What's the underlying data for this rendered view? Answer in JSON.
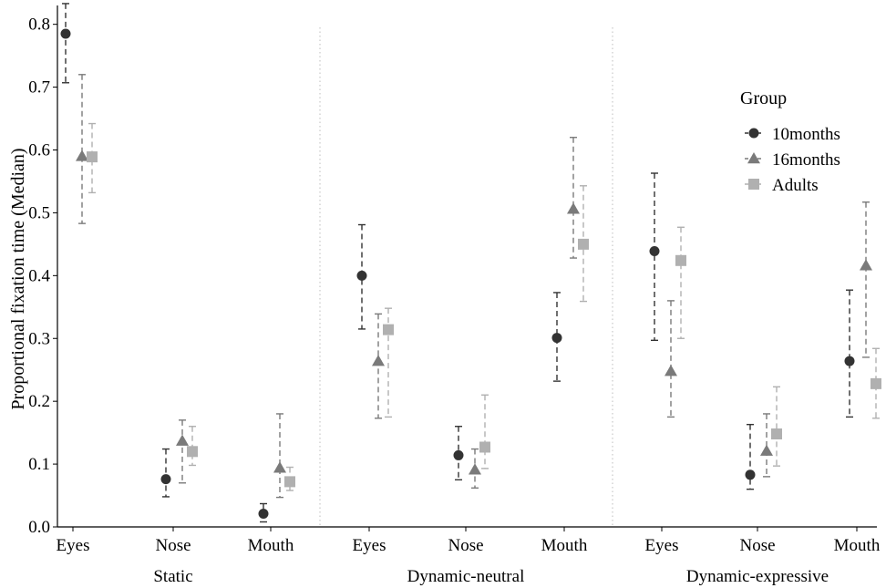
{
  "chart_data": {
    "type": "scatter",
    "ylabel": "Proportional fixation time (Median)",
    "ylim": [
      0,
      0.83
    ],
    "yticks": [
      "0.0",
      "0.1",
      "0.2",
      "0.3",
      "0.4",
      "0.5",
      "0.6",
      "0.7",
      "0.8"
    ],
    "groups": [
      {
        "label": "Static",
        "categories": [
          "Eyes",
          "Nose",
          "Mouth"
        ]
      },
      {
        "label": "Dynamic-neutral",
        "categories": [
          "Eyes",
          "Nose",
          "Mouth"
        ]
      },
      {
        "label": "Dynamic-expressive",
        "categories": [
          "Eyes",
          "Nose",
          "Mouth"
        ]
      }
    ],
    "legend": {
      "title": "Group",
      "position": "right"
    },
    "series": [
      {
        "name": "10months",
        "color": "#333333",
        "marker": "circle",
        "points": [
          {
            "group": "Static",
            "x": "Eyes",
            "y": 0.785,
            "lo": 0.707,
            "hi": 0.833
          },
          {
            "group": "Static",
            "x": "Nose",
            "y": 0.076,
            "lo": 0.048,
            "hi": 0.124
          },
          {
            "group": "Static",
            "x": "Mouth",
            "y": 0.021,
            "lo": 0.008,
            "hi": 0.037
          },
          {
            "group": "Dynamic-neutral",
            "x": "Eyes",
            "y": 0.4,
            "lo": 0.315,
            "hi": 0.481
          },
          {
            "group": "Dynamic-neutral",
            "x": "Nose",
            "y": 0.114,
            "lo": 0.075,
            "hi": 0.16
          },
          {
            "group": "Dynamic-neutral",
            "x": "Mouth",
            "y": 0.301,
            "lo": 0.232,
            "hi": 0.373
          },
          {
            "group": "Dynamic-expressive",
            "x": "Eyes",
            "y": 0.439,
            "lo": 0.297,
            "hi": 0.563
          },
          {
            "group": "Dynamic-expressive",
            "x": "Nose",
            "y": 0.083,
            "lo": 0.06,
            "hi": 0.163
          },
          {
            "group": "Dynamic-expressive",
            "x": "Mouth",
            "y": 0.264,
            "lo": 0.175,
            "hi": 0.377
          }
        ]
      },
      {
        "name": "16months",
        "color": "#7a7a7a",
        "marker": "triangle",
        "points": [
          {
            "group": "Static",
            "x": "Eyes",
            "y": 0.59,
            "lo": 0.483,
            "hi": 0.72
          },
          {
            "group": "Static",
            "x": "Nose",
            "y": 0.137,
            "lo": 0.07,
            "hi": 0.17
          },
          {
            "group": "Static",
            "x": "Mouth",
            "y": 0.094,
            "lo": 0.047,
            "hi": 0.18
          },
          {
            "group": "Dynamic-neutral",
            "x": "Eyes",
            "y": 0.264,
            "lo": 0.173,
            "hi": 0.339
          },
          {
            "group": "Dynamic-neutral",
            "x": "Nose",
            "y": 0.091,
            "lo": 0.062,
            "hi": 0.124
          },
          {
            "group": "Dynamic-neutral",
            "x": "Mouth",
            "y": 0.506,
            "lo": 0.428,
            "hi": 0.62
          },
          {
            "group": "Dynamic-expressive",
            "x": "Eyes",
            "y": 0.248,
            "lo": 0.175,
            "hi": 0.36
          },
          {
            "group": "Dynamic-expressive",
            "x": "Nose",
            "y": 0.121,
            "lo": 0.08,
            "hi": 0.18
          },
          {
            "group": "Dynamic-expressive",
            "x": "Mouth",
            "y": 0.416,
            "lo": 0.27,
            "hi": 0.517
          }
        ]
      },
      {
        "name": "Adults",
        "color": "#b0b0b0",
        "marker": "square",
        "points": [
          {
            "group": "Static",
            "x": "Eyes",
            "y": 0.589,
            "lo": 0.532,
            "hi": 0.642
          },
          {
            "group": "Static",
            "x": "Nose",
            "y": 0.12,
            "lo": 0.098,
            "hi": 0.16
          },
          {
            "group": "Static",
            "x": "Mouth",
            "y": 0.072,
            "lo": 0.058,
            "hi": 0.095
          },
          {
            "group": "Dynamic-neutral",
            "x": "Eyes",
            "y": 0.314,
            "lo": 0.175,
            "hi": 0.348
          },
          {
            "group": "Dynamic-neutral",
            "x": "Nose",
            "y": 0.127,
            "lo": 0.093,
            "hi": 0.21
          },
          {
            "group": "Dynamic-neutral",
            "x": "Mouth",
            "y": 0.45,
            "lo": 0.359,
            "hi": 0.543
          },
          {
            "group": "Dynamic-expressive",
            "x": "Eyes",
            "y": 0.424,
            "lo": 0.3,
            "hi": 0.477
          },
          {
            "group": "Dynamic-expressive",
            "x": "Nose",
            "y": 0.148,
            "lo": 0.097,
            "hi": 0.223
          },
          {
            "group": "Dynamic-expressive",
            "x": "Mouth",
            "y": 0.228,
            "lo": 0.173,
            "hi": 0.284
          }
        ]
      }
    ]
  }
}
